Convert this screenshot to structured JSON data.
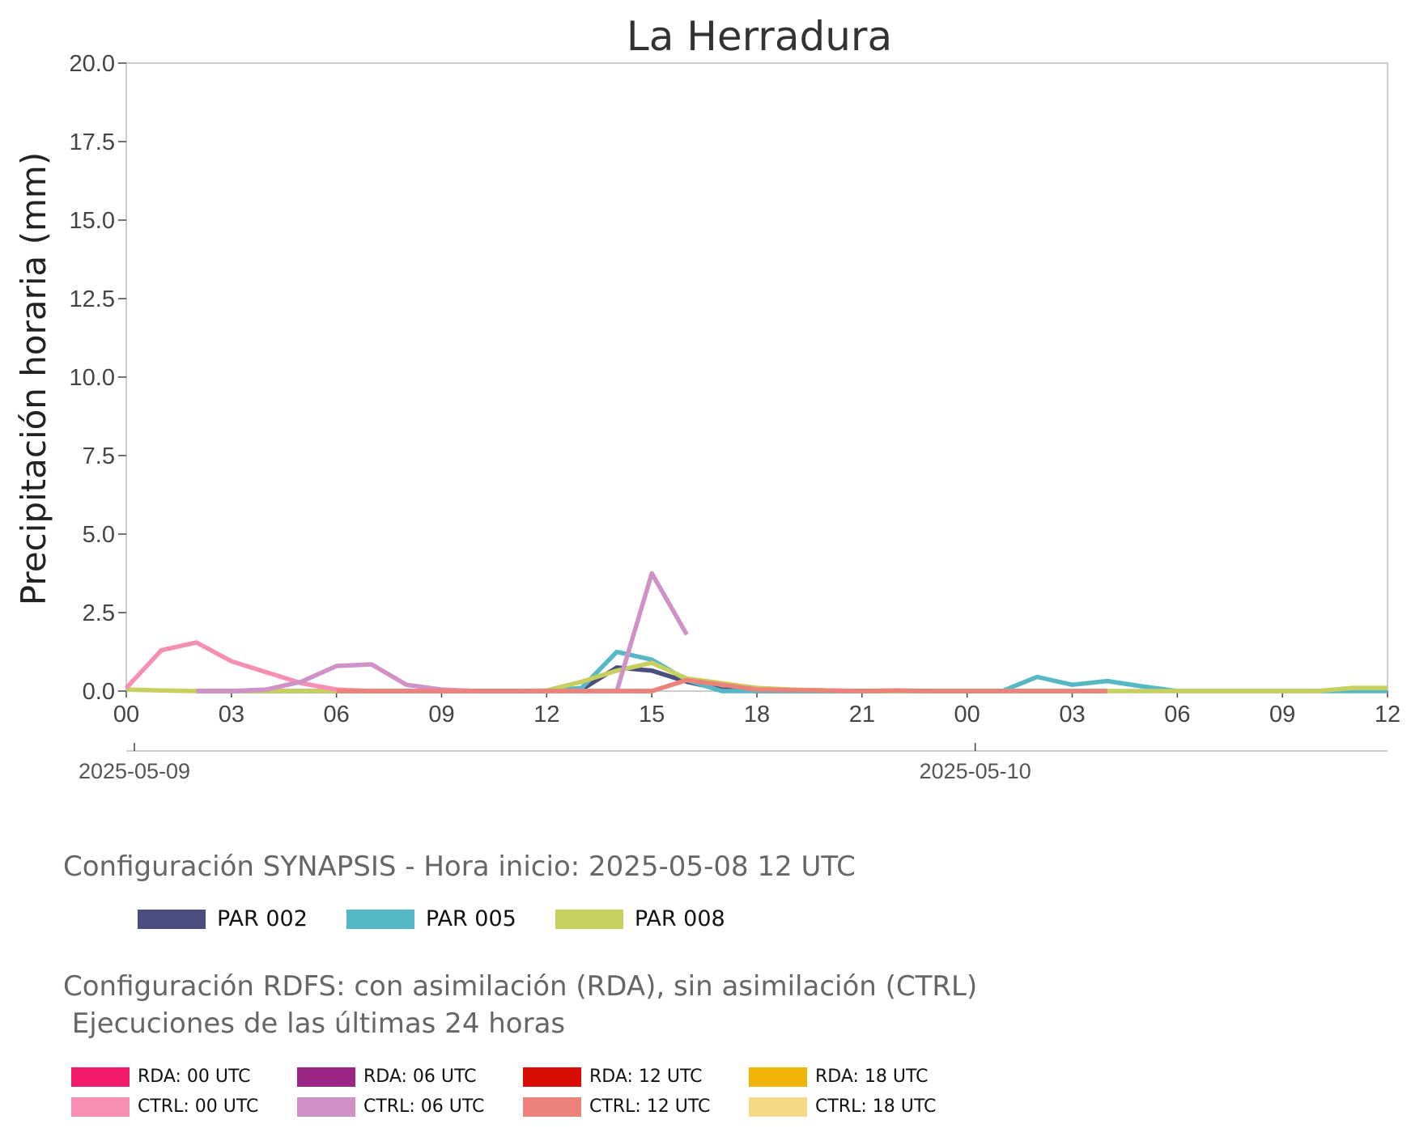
{
  "chart_data": {
    "type": "line",
    "title": "La Herradura",
    "ylabel": "Precipitación horaria (mm)",
    "xlabel": "",
    "ylim": [
      0,
      20
    ],
    "yticks": [
      "0.0",
      "2.5",
      "5.0",
      "7.5",
      "10.0",
      "12.5",
      "15.0",
      "17.5",
      "20.0"
    ],
    "xticks": [
      "00",
      "03",
      "06",
      "09",
      "12",
      "15",
      "18",
      "21",
      "00",
      "03",
      "06",
      "09",
      "12"
    ],
    "xrange_hours": [
      0,
      36
    ],
    "dates": [
      "2025-05-09",
      "2025-05-10"
    ],
    "grid": false,
    "series": [
      {
        "name": "PAR 002",
        "color": "#4a4e7e",
        "points": [
          [
            2,
            0
          ],
          [
            3,
            0
          ],
          [
            4,
            0
          ],
          [
            5,
            0
          ],
          [
            6,
            0
          ],
          [
            7,
            0
          ],
          [
            8,
            0
          ],
          [
            9,
            0
          ],
          [
            10,
            0
          ],
          [
            11,
            0
          ],
          [
            12,
            0
          ],
          [
            13,
            0.05
          ],
          [
            14,
            0.75
          ],
          [
            15,
            0.65
          ],
          [
            16,
            0.3
          ],
          [
            17,
            0.05
          ],
          [
            18,
            0
          ],
          [
            19,
            0
          ],
          [
            20,
            0
          ],
          [
            21,
            0
          ],
          [
            22,
            0
          ],
          [
            23,
            0
          ],
          [
            24,
            0
          ],
          [
            25,
            0
          ],
          [
            26,
            0
          ],
          [
            27,
            0
          ],
          [
            28,
            0
          ]
        ]
      },
      {
        "name": "PAR 005",
        "color": "#56b8c4",
        "points": [
          [
            12,
            0
          ],
          [
            13,
            0.1
          ],
          [
            14,
            1.25
          ],
          [
            15,
            1.0
          ],
          [
            16,
            0.35
          ],
          [
            17,
            0
          ],
          [
            18,
            0
          ],
          [
            19,
            0
          ],
          [
            20,
            0
          ],
          [
            21,
            0
          ],
          [
            22,
            0
          ],
          [
            23,
            0
          ],
          [
            24,
            0
          ],
          [
            25,
            0
          ],
          [
            26,
            0.45
          ],
          [
            27,
            0.2
          ],
          [
            28,
            0.32
          ],
          [
            29,
            0.15
          ],
          [
            30,
            0
          ],
          [
            31,
            0
          ],
          [
            32,
            0
          ],
          [
            33,
            0
          ],
          [
            34,
            0
          ],
          [
            35,
            0
          ],
          [
            36,
            0
          ]
        ]
      },
      {
        "name": "PAR 008",
        "color": "#c7d05e",
        "points": [
          [
            0,
            0.05
          ],
          [
            1,
            0.02
          ],
          [
            2,
            0
          ],
          [
            3,
            0
          ],
          [
            4,
            0
          ],
          [
            5,
            0
          ],
          [
            6,
            0
          ],
          [
            7,
            0
          ],
          [
            8,
            0
          ],
          [
            9,
            0
          ],
          [
            10,
            0
          ],
          [
            11,
            0
          ],
          [
            12,
            0.02
          ],
          [
            13,
            0.3
          ],
          [
            14,
            0.65
          ],
          [
            15,
            0.9
          ],
          [
            16,
            0.4
          ],
          [
            17,
            0.25
          ],
          [
            18,
            0.1
          ],
          [
            19,
            0.05
          ],
          [
            20,
            0.02
          ],
          [
            21,
            0
          ],
          [
            22,
            0
          ],
          [
            23,
            0
          ],
          [
            24,
            0
          ],
          [
            25,
            0
          ],
          [
            26,
            0
          ],
          [
            27,
            0
          ],
          [
            28,
            0
          ],
          [
            29,
            0
          ],
          [
            30,
            0
          ],
          [
            31,
            0
          ],
          [
            32,
            0
          ],
          [
            33,
            0
          ],
          [
            34,
            0
          ],
          [
            35,
            0.1
          ],
          [
            36,
            0.1
          ]
        ]
      },
      {
        "name": "CTRL: 00 UTC",
        "color": "#f78eb3",
        "points": [
          [
            0,
            0.1
          ],
          [
            1,
            1.3
          ],
          [
            2,
            1.55
          ],
          [
            3,
            0.95
          ],
          [
            4,
            0.6
          ],
          [
            5,
            0.25
          ],
          [
            6,
            0.05
          ],
          [
            7,
            0
          ],
          [
            8,
            0
          ],
          [
            9,
            0
          ],
          [
            10,
            0
          ],
          [
            11,
            0
          ],
          [
            12,
            0
          ],
          [
            13,
            0
          ],
          [
            14,
            0
          ],
          [
            15,
            0
          ],
          [
            16,
            0.35
          ]
        ]
      },
      {
        "name": "CTRL: 06 UTC",
        "color": "#cf91c6",
        "points": [
          [
            2,
            0
          ],
          [
            3,
            0
          ],
          [
            4,
            0.05
          ],
          [
            5,
            0.3
          ],
          [
            6,
            0.8
          ],
          [
            7,
            0.85
          ],
          [
            8,
            0.2
          ],
          [
            9,
            0.05
          ],
          [
            10,
            0
          ],
          [
            11,
            0
          ],
          [
            12,
            0
          ],
          [
            13,
            0
          ],
          [
            14,
            0
          ],
          [
            15,
            3.75
          ],
          [
            16,
            1.8
          ]
        ]
      },
      {
        "name": "CTRL: 12 UTC",
        "color": "#ec8279",
        "points": [
          [
            6,
            0
          ],
          [
            7,
            0
          ],
          [
            8,
            0
          ],
          [
            9,
            0
          ],
          [
            10,
            0
          ],
          [
            11,
            0
          ],
          [
            12,
            0
          ],
          [
            13,
            0
          ],
          [
            14,
            0
          ],
          [
            15,
            0
          ],
          [
            16,
            0.35
          ],
          [
            17,
            0.2
          ],
          [
            18,
            0.05
          ],
          [
            19,
            0.03
          ],
          [
            20,
            0.02
          ],
          [
            21,
            0
          ],
          [
            22,
            0.02
          ],
          [
            23,
            0
          ],
          [
            24,
            0
          ],
          [
            25,
            0
          ],
          [
            26,
            0
          ],
          [
            27,
            0
          ],
          [
            28,
            0
          ]
        ]
      }
    ]
  },
  "synapsis": {
    "title": "Configuración SYNAPSIS - Hora inicio: 2025-05-08 12 UTC",
    "legend": [
      {
        "label": "PAR 002",
        "color": "#4a4e7e"
      },
      {
        "label": "PAR 005",
        "color": "#56b8c4"
      },
      {
        "label": "PAR 008",
        "color": "#c7d05e"
      }
    ]
  },
  "rdfs": {
    "title": "Configuración RDFS: con asimilación (RDA), sin asimilación (CTRL)\n Ejecuciones de las últimas 24 horas",
    "legend": [
      {
        "label": "RDA: 00 UTC",
        "color": "#f21b6b"
      },
      {
        "label": "RDA: 06 UTC",
        "color": "#9b2585"
      },
      {
        "label": "RDA: 12 UTC",
        "color": "#d80c00"
      },
      {
        "label": "RDA: 18 UTC",
        "color": "#f0b406"
      },
      {
        "label": "CTRL: 00 UTC",
        "color": "#f78eb3"
      },
      {
        "label": "CTRL: 06 UTC",
        "color": "#cf91c6"
      },
      {
        "label": "CTRL: 12 UTC",
        "color": "#ec8279"
      },
      {
        "label": "CTRL: 18 UTC",
        "color": "#f7d886"
      }
    ]
  }
}
